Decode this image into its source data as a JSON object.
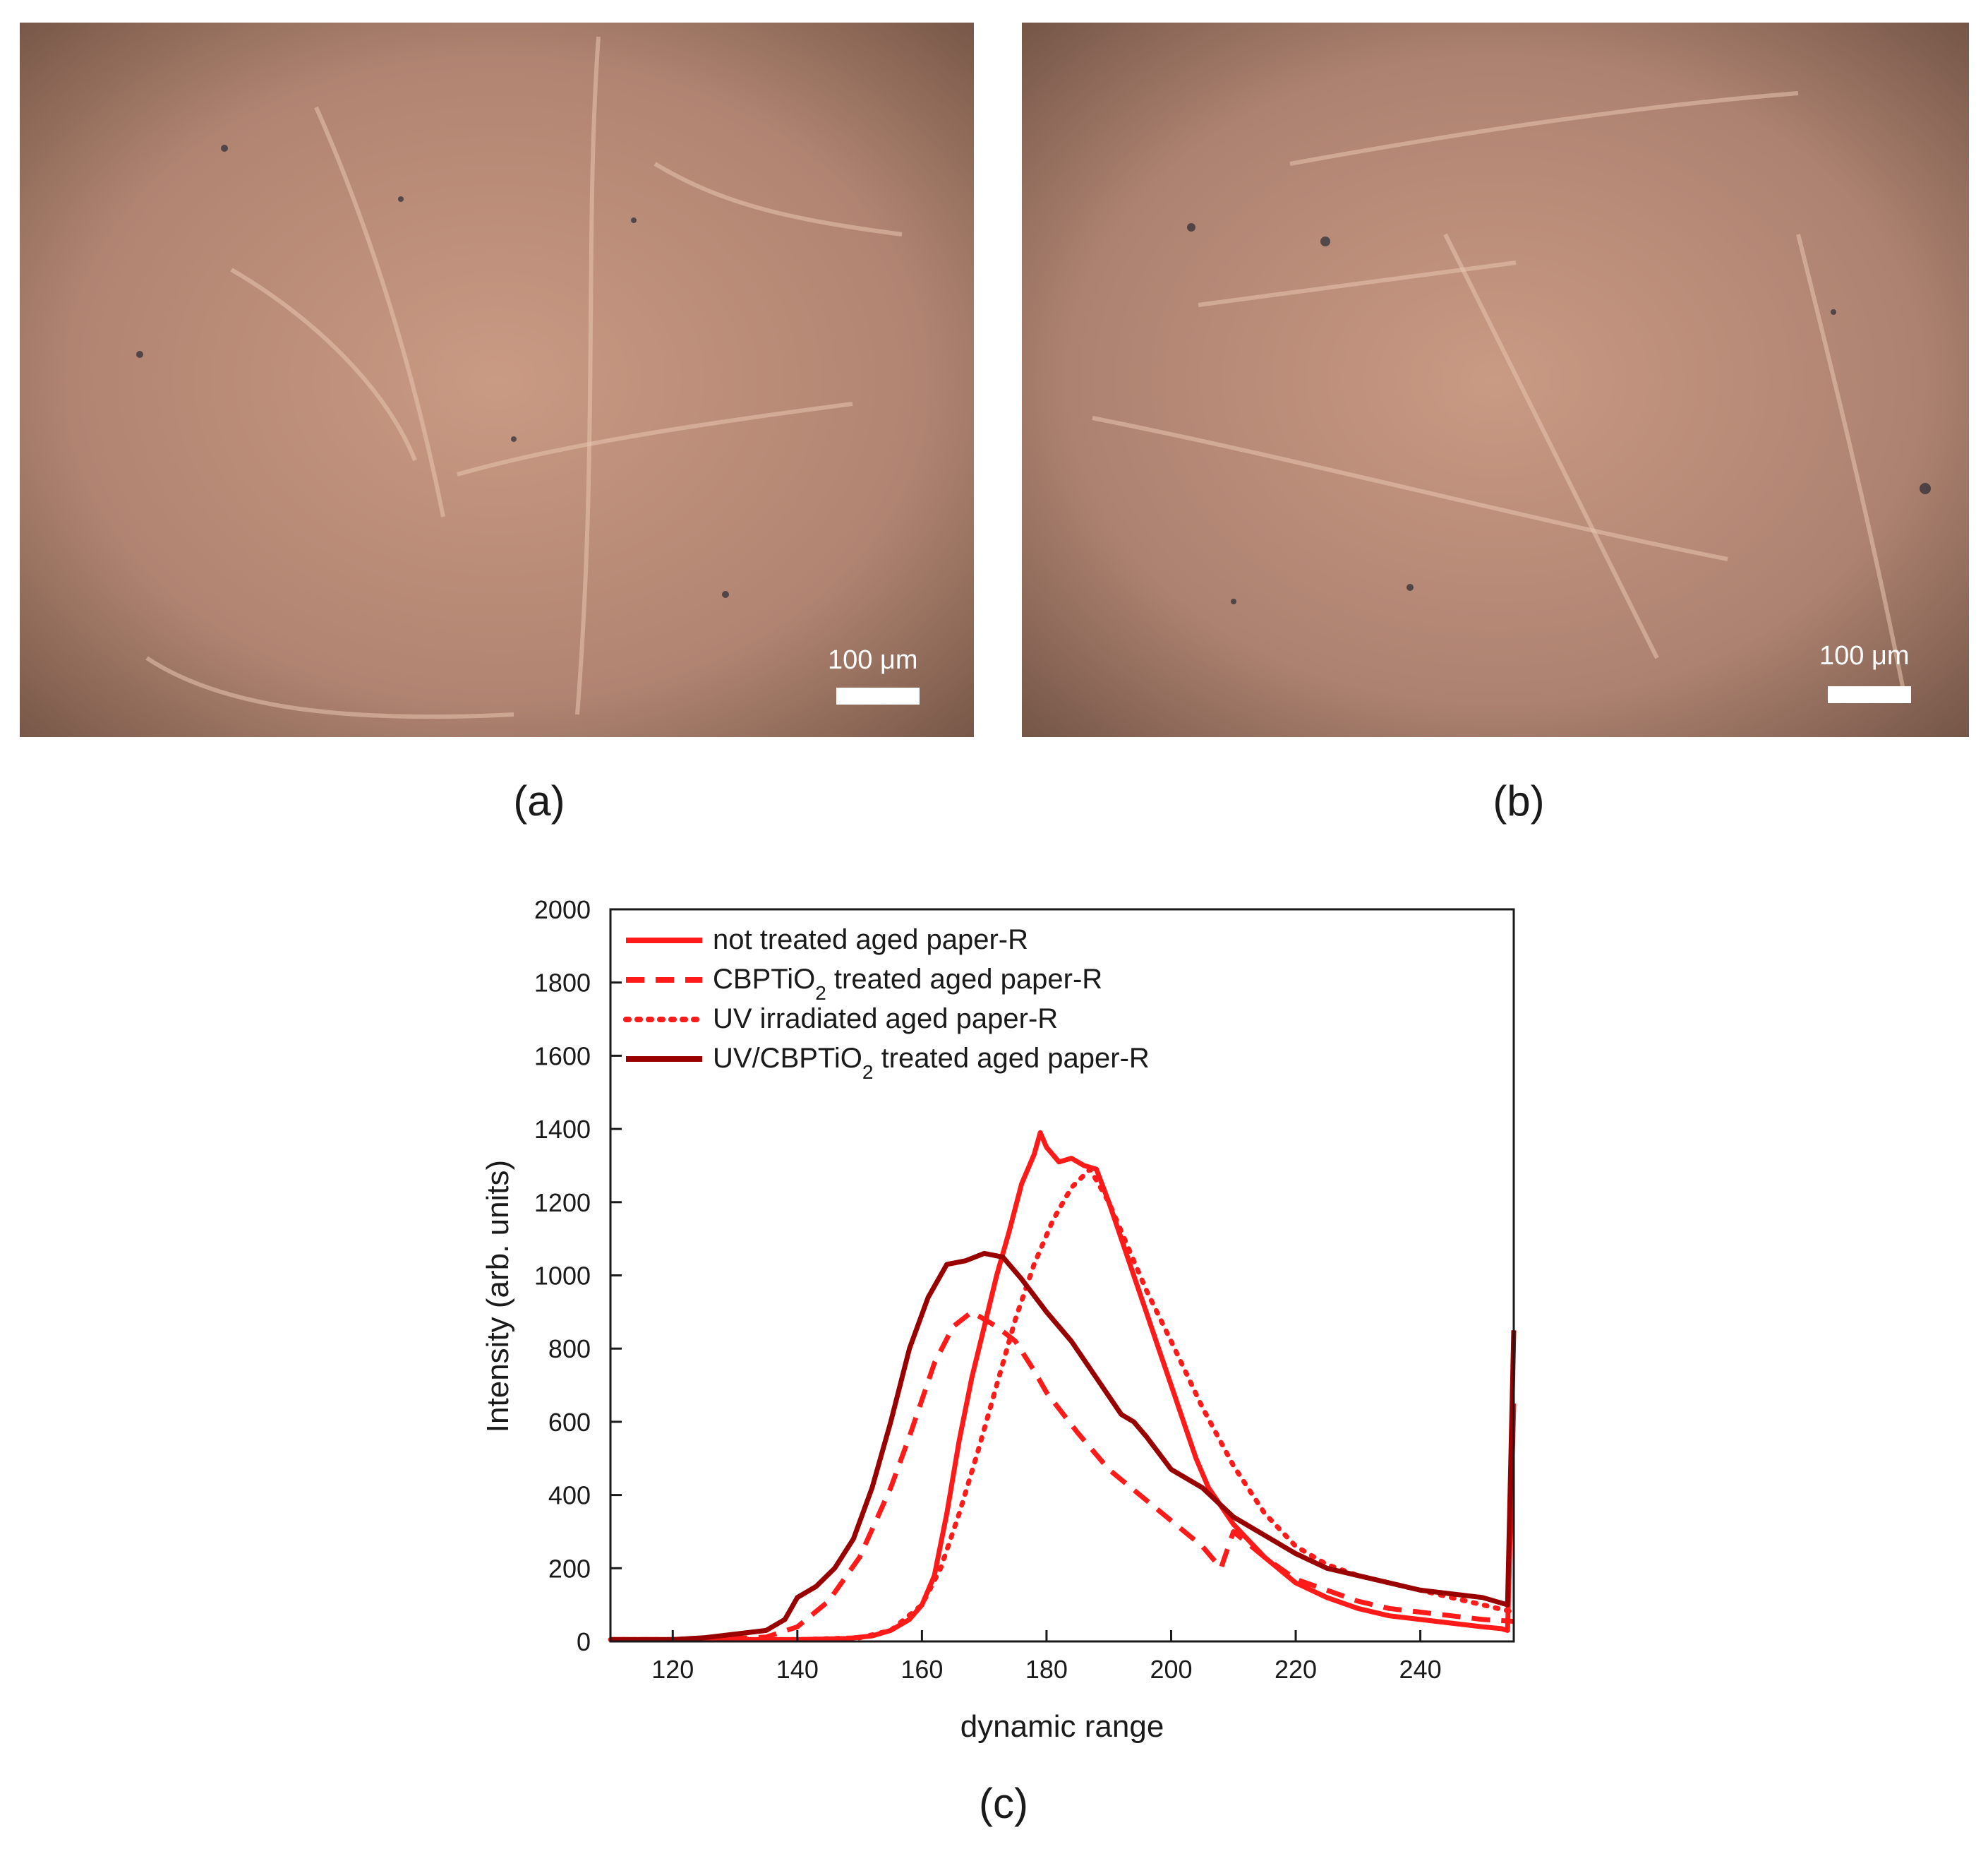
{
  "panels": [
    {
      "label": "(a)",
      "scale_text": "100 μm"
    },
    {
      "label": "(b)",
      "scale_text": "100 μm"
    }
  ],
  "chart_label": "(c)",
  "colors": {
    "bright_red": "#ff1a1a",
    "dark_red": "#990000"
  },
  "chart_data": {
    "type": "line",
    "title": "",
    "xlabel": "dynamic range",
    "ylabel": "Intensity (arb. units)",
    "xlim": [
      110,
      255
    ],
    "ylim": [
      0,
      2000
    ],
    "xticks": [
      120,
      140,
      160,
      180,
      200,
      220,
      240
    ],
    "yticks": [
      0,
      200,
      400,
      600,
      800,
      1000,
      1200,
      1400,
      1600,
      1800,
      2000
    ],
    "grid": false,
    "legend_position": "top-left",
    "series": [
      {
        "name": "not treated aged paper-R",
        "legend_main": "not treated aged paper-R",
        "legend_sub": "",
        "legend_tail": "",
        "color": "#ff1a1a",
        "dash": "solid",
        "x": [
          110,
          130,
          140,
          148,
          152,
          155,
          158,
          160,
          162,
          164,
          166,
          168,
          170,
          172,
          174,
          176,
          178,
          179,
          180,
          182,
          184,
          186,
          188,
          190,
          192,
          194,
          196,
          198,
          200,
          202,
          204,
          206,
          210,
          215,
          220,
          225,
          230,
          235,
          240,
          245,
          250,
          253,
          254,
          255
        ],
        "y": [
          5,
          5,
          5,
          8,
          15,
          30,
          60,
          100,
          180,
          350,
          550,
          720,
          860,
          1000,
          1120,
          1250,
          1330,
          1390,
          1350,
          1310,
          1320,
          1300,
          1290,
          1200,
          1100,
          1000,
          900,
          800,
          700,
          600,
          500,
          420,
          320,
          230,
          160,
          120,
          90,
          70,
          60,
          50,
          40,
          35,
          30,
          650
        ]
      },
      {
        "name": "CBPTiO2 treated aged paper-R",
        "legend_main": "CBPTiO",
        "legend_sub": "2",
        "legend_tail": " treated aged paper-R",
        "color": "#ff1a1a",
        "dash": "dashed",
        "x": [
          110,
          125,
          130,
          135,
          140,
          145,
          150,
          155,
          158,
          160,
          162,
          165,
          168,
          170,
          172,
          175,
          178,
          180,
          185,
          190,
          195,
          200,
          205,
          208,
          210,
          215,
          220,
          225,
          230,
          235,
          240,
          245,
          250,
          255
        ],
        "y": [
          5,
          5,
          8,
          12,
          40,
          110,
          230,
          420,
          560,
          660,
          760,
          860,
          900,
          880,
          860,
          820,
          740,
          680,
          570,
          470,
          400,
          330,
          260,
          200,
          300,
          230,
          170,
          140,
          110,
          90,
          80,
          70,
          60,
          55
        ]
      },
      {
        "name": "UV irradiated aged paper-R",
        "legend_main": "UV irradiated aged paper-R",
        "legend_sub": "",
        "legend_tail": "",
        "color": "#ff1a1a",
        "dash": "dotted",
        "x": [
          110,
          140,
          150,
          155,
          160,
          163,
          166,
          169,
          172,
          175,
          178,
          181,
          184,
          187,
          190,
          193,
          196,
          200,
          205,
          210,
          215,
          220,
          225,
          230,
          235,
          240,
          245,
          250,
          255
        ],
        "y": [
          5,
          5,
          10,
          30,
          100,
          200,
          350,
          520,
          700,
          880,
          1030,
          1150,
          1240,
          1290,
          1200,
          1080,
          960,
          820,
          640,
          480,
          350,
          260,
          210,
          180,
          160,
          140,
          120,
          100,
          80
        ]
      },
      {
        "name": "UV/CBPTiO2 treated aged paper-R",
        "legend_main": "UV/CBPTiO",
        "legend_sub": "2",
        "legend_tail": " treated aged paper-R",
        "color": "#990000",
        "dash": "solid",
        "x": [
          110,
          120,
          125,
          130,
          135,
          138,
          140,
          143,
          146,
          149,
          152,
          155,
          158,
          161,
          164,
          167,
          170,
          173,
          176,
          180,
          184,
          188,
          192,
          194,
          196,
          200,
          205,
          210,
          215,
          220,
          225,
          230,
          235,
          240,
          245,
          250,
          254,
          255
        ],
        "y": [
          5,
          5,
          10,
          20,
          30,
          60,
          120,
          150,
          200,
          280,
          420,
          600,
          800,
          940,
          1030,
          1040,
          1060,
          1050,
          990,
          900,
          820,
          720,
          620,
          600,
          560,
          470,
          420,
          340,
          290,
          240,
          200,
          180,
          160,
          140,
          130,
          120,
          100,
          850
        ]
      }
    ]
  }
}
